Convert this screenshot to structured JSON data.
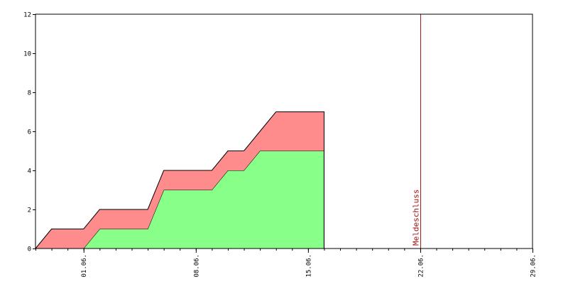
{
  "chart_data": {
    "type": "area",
    "stacked": true,
    "x_start": "29.05.",
    "x_end": "29.06.",
    "x": [
      "29.05.",
      "30.05.",
      "31.05.",
      "01.06.",
      "02.06.",
      "03.06.",
      "04.06.",
      "05.06.",
      "06.06.",
      "07.06.",
      "08.06.",
      "09.06.",
      "10.06.",
      "11.06.",
      "12.06.",
      "13.06.",
      "14.06.",
      "15.06.",
      "16.06."
    ],
    "series": [
      {
        "color": "#88ff88",
        "values": [
          0,
          0,
          0,
          0,
          1,
          1,
          1,
          1,
          3,
          3,
          3,
          3,
          4,
          4,
          5,
          5,
          5,
          5,
          5
        ]
      },
      {
        "color": "#ff8c8c",
        "values": [
          0,
          1,
          1,
          1,
          1,
          1,
          1,
          1,
          1,
          1,
          1,
          1,
          1,
          1,
          1,
          2,
          2,
          2,
          2
        ]
      }
    ],
    "ylim": [
      0,
      12
    ],
    "yticks": [
      "0",
      "2",
      "4",
      "6",
      "8",
      "10",
      "12"
    ],
    "xticks": [
      "01.06.",
      "08.06.",
      "15.06.",
      "22.06.",
      "29.06."
    ],
    "grid": false,
    "annotations": [
      {
        "x": "22.06.",
        "label": "Meldeschluss",
        "color": "#a01010"
      }
    ]
  }
}
